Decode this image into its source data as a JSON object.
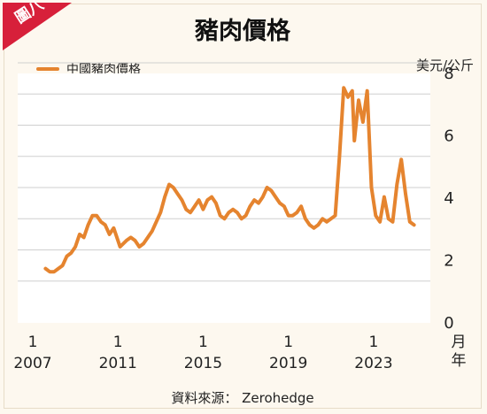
{
  "badge": "圖八",
  "source": "資料來源： Zerohedge",
  "x_unit_chars": [
    "月",
    "年"
  ],
  "colors": {
    "line": "#e5842f",
    "badge": "#d7203a",
    "grid": "#cfcfcf"
  },
  "chart_data": {
    "type": "line",
    "title": "豬肉價格",
    "ylabel": "美元/公斤",
    "ylim": [
      0,
      8
    ],
    "yticks": [
      0,
      2,
      4,
      6,
      8
    ],
    "xlim": [
      2007,
      2025
    ],
    "xticks": [
      {
        "month": "1",
        "year": "2007",
        "x": 2007.0
      },
      {
        "month": "1",
        "year": "2011",
        "x": 2011.0
      },
      {
        "month": "1",
        "year": "2015",
        "x": 2015.0
      },
      {
        "month": "1",
        "year": "2019",
        "x": 2019.0
      },
      {
        "month": "1",
        "year": "2023",
        "x": 2023.0
      }
    ],
    "grid": true,
    "legend_position": "top-left",
    "series": [
      {
        "name": "中國豬肉價格",
        "color": "#e5842f",
        "points": [
          [
            2007.6,
            1.4
          ],
          [
            2007.8,
            1.3
          ],
          [
            2008.0,
            1.3
          ],
          [
            2008.2,
            1.4
          ],
          [
            2008.4,
            1.5
          ],
          [
            2008.6,
            1.8
          ],
          [
            2008.8,
            1.9
          ],
          [
            2009.0,
            2.1
          ],
          [
            2009.2,
            2.5
          ],
          [
            2009.4,
            2.4
          ],
          [
            2009.6,
            2.8
          ],
          [
            2009.8,
            3.1
          ],
          [
            2010.0,
            3.1
          ],
          [
            2010.2,
            2.9
          ],
          [
            2010.4,
            2.8
          ],
          [
            2010.6,
            2.5
          ],
          [
            2010.8,
            2.7
          ],
          [
            2011.0,
            2.3
          ],
          [
            2011.1,
            2.1
          ],
          [
            2011.4,
            2.3
          ],
          [
            2011.6,
            2.4
          ],
          [
            2011.8,
            2.3
          ],
          [
            2012.0,
            2.1
          ],
          [
            2012.2,
            2.2
          ],
          [
            2012.4,
            2.4
          ],
          [
            2012.6,
            2.6
          ],
          [
            2012.8,
            2.9
          ],
          [
            2013.0,
            3.2
          ],
          [
            2013.2,
            3.7
          ],
          [
            2013.4,
            4.1
          ],
          [
            2013.6,
            4.0
          ],
          [
            2013.8,
            3.8
          ],
          [
            2014.0,
            3.6
          ],
          [
            2014.2,
            3.3
          ],
          [
            2014.4,
            3.2
          ],
          [
            2014.6,
            3.4
          ],
          [
            2014.8,
            3.6
          ],
          [
            2015.0,
            3.3
          ],
          [
            2015.2,
            3.6
          ],
          [
            2015.4,
            3.7
          ],
          [
            2015.6,
            3.5
          ],
          [
            2015.8,
            3.1
          ],
          [
            2016.0,
            3.0
          ],
          [
            2016.2,
            3.2
          ],
          [
            2016.4,
            3.3
          ],
          [
            2016.6,
            3.2
          ],
          [
            2016.8,
            3.0
          ],
          [
            2017.0,
            3.1
          ],
          [
            2017.2,
            3.4
          ],
          [
            2017.4,
            3.6
          ],
          [
            2017.6,
            3.5
          ],
          [
            2017.8,
            3.7
          ],
          [
            2018.0,
            4.0
          ],
          [
            2018.2,
            3.9
          ],
          [
            2018.4,
            3.7
          ],
          [
            2018.6,
            3.5
          ],
          [
            2018.8,
            3.4
          ],
          [
            2019.0,
            3.1
          ],
          [
            2019.2,
            3.1
          ],
          [
            2019.4,
            3.2
          ],
          [
            2019.6,
            3.4
          ],
          [
            2019.8,
            3.0
          ],
          [
            2020.0,
            2.8
          ],
          [
            2020.2,
            2.7
          ],
          [
            2020.4,
            2.8
          ],
          [
            2020.6,
            3.0
          ],
          [
            2020.8,
            2.9
          ],
          [
            2021.0,
            3.0
          ],
          [
            2021.2,
            3.1
          ],
          [
            2021.4,
            5.0
          ],
          [
            2021.6,
            7.2
          ],
          [
            2021.8,
            6.9
          ],
          [
            2022.0,
            7.1
          ],
          [
            2022.1,
            5.5
          ],
          [
            2022.3,
            6.8
          ],
          [
            2022.5,
            6.1
          ],
          [
            2022.7,
            7.1
          ],
          [
            2022.9,
            4.0
          ],
          [
            2023.1,
            3.1
          ],
          [
            2023.3,
            2.9
          ],
          [
            2023.5,
            3.7
          ],
          [
            2023.7,
            3.0
          ],
          [
            2023.9,
            2.9
          ],
          [
            2024.1,
            4.1
          ],
          [
            2024.3,
            4.9
          ],
          [
            2024.5,
            3.8
          ],
          [
            2024.7,
            2.9
          ],
          [
            2024.9,
            2.8
          ]
        ]
      }
    ]
  }
}
